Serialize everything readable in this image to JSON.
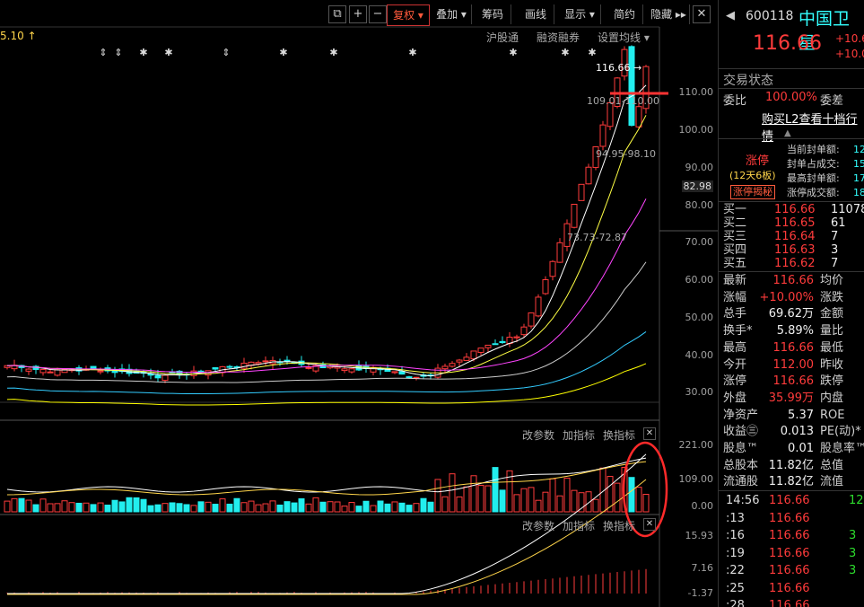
{
  "toolbar": {
    "buttons": [
      {
        "label": "复权 ▾"
      },
      {
        "label": "叠加 ▾"
      },
      {
        "label": "筹码"
      },
      {
        "label": "画线"
      },
      {
        "label": "显示 ▾"
      },
      {
        "label": "简约"
      },
      {
        "label": "隐藏 ▸▸"
      }
    ],
    "top_left_text": "5.10 ↑",
    "links": [
      "沪股通",
      "融资融券",
      "设置均线 ▾"
    ]
  },
  "main_chart": {
    "price_axis": [
      "110.00",
      "100.00",
      "90.00",
      "82.98",
      "80.00",
      "70.00",
      "60.00",
      "50.00",
      "40.00",
      "30.00"
    ],
    "annotations": {
      "last_price": "116.66 →",
      "range_high": "109.01-110.00",
      "range_mid": "94.95-98.10",
      "range_low": "73.73-72.87"
    },
    "event_markers": [
      "⇕",
      "⇕",
      "✱",
      "✱",
      "⇕",
      "✱",
      "✱",
      "✱",
      "✱",
      "✱",
      "✱"
    ]
  },
  "volume_panel": {
    "tools": [
      "改参数",
      "加指标",
      "换指标"
    ],
    "axis": [
      "221.00",
      "109.00",
      "0.00"
    ]
  },
  "indicator_panel": {
    "tools": [
      "改参数",
      "加指标",
      "换指标"
    ],
    "axis": [
      "15.93",
      "7.16",
      "-1.37"
    ]
  },
  "stock": {
    "code": "600118",
    "name": "中国卫星",
    "price": "116.66",
    "change": "+10.6",
    "change_pct": "+10.0",
    "trade_status_label": "交易状态",
    "weibi_label": "委比",
    "weibi_value": "100.00%",
    "weicha_label": "委差",
    "l2_link": "购买L2查看十档行情",
    "seal": {
      "tag": "涨停",
      "days": "(12天6板)",
      "reveal": "涨停揭秘",
      "rows": [
        {
          "k": "当前封单额:",
          "v": "12"
        },
        {
          "k": "封单占成交:",
          "v": "15"
        },
        {
          "k": "最高封单额:",
          "v": "17"
        },
        {
          "k": "涨停成交额:",
          "v": "18"
        }
      ]
    },
    "bids": [
      {
        "k": "买一",
        "p": "116.66",
        "q": "11078"
      },
      {
        "k": "买二",
        "p": "116.65",
        "q": "61"
      },
      {
        "k": "买三",
        "p": "116.64",
        "q": "7"
      },
      {
        "k": "买四",
        "p": "116.63",
        "q": "3"
      },
      {
        "k": "买五",
        "p": "116.62",
        "q": "7"
      }
    ],
    "stats": [
      {
        "k": "最新",
        "v": "116.66",
        "c": "red",
        "k2": "均价"
      },
      {
        "k": "涨幅",
        "v": "+10.00%",
        "c": "red",
        "k2": "涨跌"
      },
      {
        "k": "总手",
        "v": "69.62万",
        "c": "white",
        "k2": "金额"
      },
      {
        "k": "换手*",
        "v": "5.89%",
        "c": "white",
        "k2": "量比"
      },
      {
        "k": "最高",
        "v": "116.66",
        "c": "red",
        "k2": "最低"
      },
      {
        "k": "今开",
        "v": "112.00",
        "c": "red",
        "k2": "昨收"
      },
      {
        "k": "涨停",
        "v": "116.66",
        "c": "red",
        "k2": "跌停"
      },
      {
        "k": "外盘",
        "v": "35.99万",
        "c": "red",
        "k2": "内盘"
      },
      {
        "k": "净资产",
        "v": "5.37",
        "c": "white",
        "k2": "ROE"
      },
      {
        "k": "收益㊂",
        "v": "0.013",
        "c": "white",
        "k2": "PE(动)*"
      },
      {
        "k": "股息™",
        "v": "0.01",
        "c": "white",
        "k2": "股息率™"
      },
      {
        "k": "总股本",
        "v": "11.82亿",
        "c": "white",
        "k2": "总值"
      },
      {
        "k": "流通股",
        "v": "11.82亿",
        "c": "white",
        "k2": "流值"
      }
    ],
    "ticks": [
      {
        "t": "14:56",
        "p": "116.66",
        "q": "12"
      },
      {
        "t": ":13",
        "p": "116.66",
        "q": ""
      },
      {
        "t": ":16",
        "p": "116.66",
        "q": "3"
      },
      {
        "t": ":19",
        "p": "116.66",
        "q": "3"
      },
      {
        "t": ":22",
        "p": "116.66",
        "q": "3"
      },
      {
        "t": ":25",
        "p": "116.66",
        "q": ""
      },
      {
        "t": ":28",
        "p": "116.66",
        "q": ""
      }
    ]
  },
  "colors": {
    "up": "#ff3b3b",
    "down": "#2ee",
    "accent": "#ff5a3c",
    "bg": "#000000"
  }
}
